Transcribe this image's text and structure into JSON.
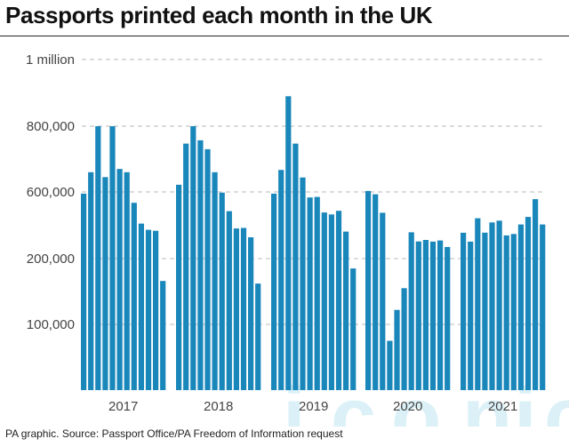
{
  "title": "Passports printed each month in the UK",
  "source": "PA graphic. Source: Passport Office/PA Freedom of Information request",
  "watermark": "iconic",
  "colors": {
    "bar": "#1a87bb",
    "grid": "#b8b8b8",
    "watermark": "#bfe6f2"
  },
  "chart_data": {
    "type": "bar",
    "title": "Passports printed each month in the UK",
    "xlabel": "",
    "ylabel": "",
    "grid": true,
    "legend": "none",
    "ytick_labels": [
      "100,000",
      "200,000",
      "600,000",
      "800,000",
      "1 million"
    ],
    "years": [
      {
        "label": "2017",
        "values": [
          590000,
          660000,
          800000,
          645000,
          800000,
          670000,
          660000,
          535000,
          410000,
          373000,
          367000,
          166000
        ]
      },
      {
        "label": "2018",
        "values": [
          622000,
          747000,
          800000,
          757000,
          730000,
          660000,
          596000,
          485000,
          381000,
          384000,
          328000,
          162000
        ]
      },
      {
        "label": "2019",
        "values": [
          590000,
          667000,
          890000,
          747000,
          644000,
          567000,
          570000,
          477000,
          465000,
          487000,
          362000,
          185000
        ]
      },
      {
        "label": "2020",
        "values": [
          603000,
          586000,
          475000,
          75000,
          122000,
          155000,
          358000,
          303000,
          312000,
          302000,
          309000,
          270000
        ]
      },
      {
        "label": "2021",
        "values": [
          355000,
          302000,
          442000,
          356000,
          417000,
          428000,
          339000,
          348000,
          405000,
          450000,
          557000,
          405000
        ]
      }
    ]
  }
}
